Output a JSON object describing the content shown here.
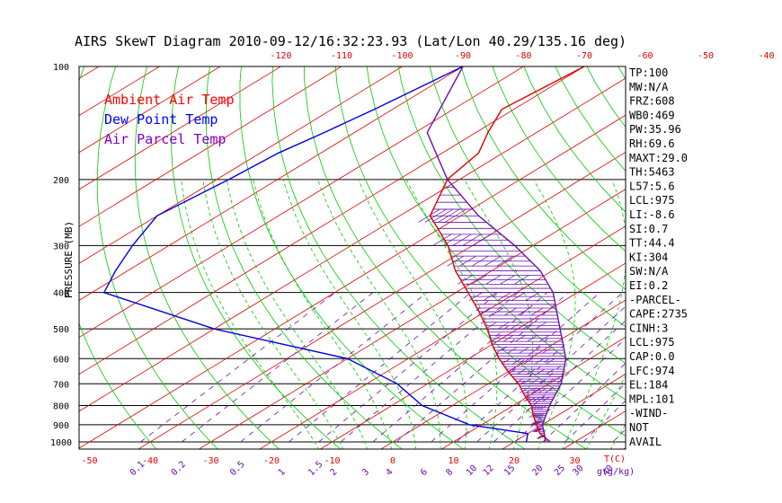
{
  "chart_data": {
    "type": "line",
    "title": "AIRS SkewT Diagram 2010-09-12/16:32:23.93 (Lat/Lon 40.29/135.16 deg)",
    "ylabel": "PRESSURE (MB)",
    "xlabel": "T(C)",
    "mixing_ratio_label": "g(g/kg)",
    "ylim": [
      1000,
      100
    ],
    "xlim": [
      -50,
      40
    ],
    "top_ticks": [
      "-120",
      "-110",
      "-100",
      "-90",
      "-80",
      "-70",
      "-60",
      "-50",
      "-40"
    ],
    "top_tick_values": [
      -120,
      -110,
      -100,
      -90,
      -80,
      -70,
      -60,
      -50,
      -40
    ],
    "bottom_ticks": [
      "-50",
      "-40",
      "-30",
      "-20",
      "-10",
      "0",
      "10",
      "20",
      "30"
    ],
    "bottom_tick_values": [
      -50,
      -40,
      -30,
      -20,
      -10,
      0,
      10,
      20,
      30
    ],
    "pressure_ticks": [
      "100",
      "200",
      "300",
      "400",
      "500",
      "600",
      "700",
      "800",
      "900",
      "1000"
    ],
    "pressure_values": [
      100,
      200,
      300,
      400,
      500,
      600,
      700,
      800,
      900,
      1000
    ],
    "mixing_ratio_labels": [
      "0.1",
      "0.2",
      "0.5",
      "1",
      "1.5",
      "2",
      "3",
      "4",
      "6",
      "8",
      "10",
      "12",
      "15",
      "20",
      "25",
      "30",
      "40"
    ],
    "mixing_ratio_values": [
      0.1,
      0.2,
      0.5,
      1,
      1.5,
      2,
      3,
      4,
      6,
      8,
      10,
      12,
      15,
      20,
      25,
      30,
      40
    ],
    "legend": [
      {
        "label": "Ambient Air Temp",
        "color": "#ff0000"
      },
      {
        "label": "Dew Point Temp",
        "color": "#0000ff"
      },
      {
        "label": "Air Parcel Temp",
        "color": "#7a00c8"
      }
    ],
    "series": [
      {
        "name": "Ambient Air Temp",
        "color": "#e00000",
        "points": [
          [
            100,
            -70
          ],
          [
            130,
            -72
          ],
          [
            150,
            -68
          ],
          [
            170,
            -64
          ],
          [
            200,
            -62
          ],
          [
            250,
            -55
          ],
          [
            300,
            -44
          ],
          [
            350,
            -36
          ],
          [
            400,
            -28
          ],
          [
            450,
            -21
          ],
          [
            500,
            -15
          ],
          [
            550,
            -10
          ],
          [
            600,
            -5
          ],
          [
            650,
            0
          ],
          [
            700,
            5
          ],
          [
            750,
            9
          ],
          [
            800,
            13
          ],
          [
            850,
            16
          ],
          [
            900,
            19
          ],
          [
            950,
            22
          ],
          [
            975,
            24
          ],
          [
            1000,
            25
          ]
        ]
      },
      {
        "name": "Dew Point Temp",
        "color": "#0000dd",
        "points": [
          [
            100,
            -90
          ],
          [
            130,
            -93
          ],
          [
            150,
            -95
          ],
          [
            170,
            -97
          ],
          [
            200,
            -98
          ],
          [
            250,
            -100
          ],
          [
            300,
            -96
          ],
          [
            350,
            -92
          ],
          [
            400,
            -88
          ],
          [
            500,
            -60
          ],
          [
            600,
            -30
          ],
          [
            700,
            -15
          ],
          [
            800,
            -5
          ],
          [
            900,
            8
          ],
          [
            950,
            20
          ],
          [
            1000,
            22
          ]
        ]
      },
      {
        "name": "Air Parcel Temp",
        "color": "#6a0dad",
        "points": [
          [
            100,
            -90
          ],
          [
            150,
            -78
          ],
          [
            200,
            -62
          ],
          [
            250,
            -47
          ],
          [
            300,
            -33
          ],
          [
            350,
            -22
          ],
          [
            400,
            -14
          ],
          [
            500,
            -3
          ],
          [
            600,
            6
          ],
          [
            700,
            12
          ],
          [
            800,
            16
          ],
          [
            900,
            20
          ],
          [
            975,
            24
          ],
          [
            1000,
            26
          ]
        ]
      }
    ]
  },
  "stats": [
    "TP:100",
    "MW:N/A",
    "FRZ:608",
    "WB0:469",
    "PW:35.96",
    "RH:69.6",
    "MAXT:29.0",
    "TH:5463",
    "L57:5.6",
    "LCL:975",
    "LI:-8.6",
    "SI:0.7",
    "TT:44.4",
    "KI:304",
    "SW:N/A",
    "EI:0.2",
    "-PARCEL-",
    "CAPE:2735",
    "CINH:3",
    "LCL:975",
    "CAP:0.0",
    "LFC:974",
    "EL:184",
    "MPL:101",
    "-WIND-",
    "NOT",
    "AVAIL"
  ],
  "colors": {
    "dry_adiabat": "#00cc00",
    "moist_adiabat": "#00cc00",
    "isotherm": "#e00000",
    "mixing_ratio": "#6a0dad",
    "isobar": "#000000",
    "hatch": "#6a0dad"
  }
}
